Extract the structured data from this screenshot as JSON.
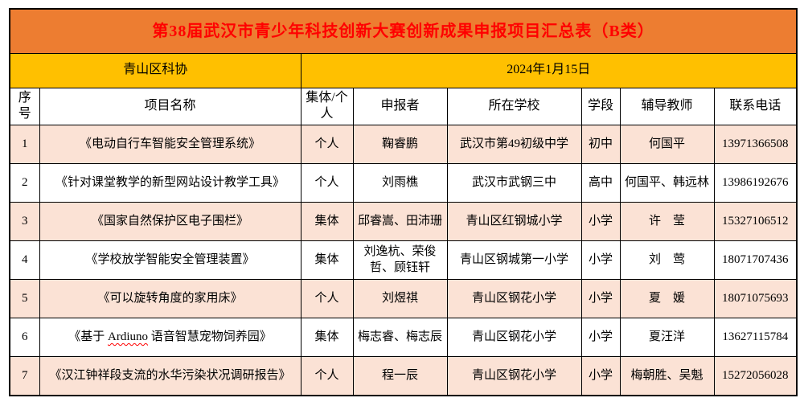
{
  "colors": {
    "banner_bg": "#ED7D31",
    "banner_text": "#FF0000",
    "subheader_bg": "#FFC000",
    "row_pink": "#FBE2D5",
    "row_white": "#FFFFFF",
    "border": "#000000",
    "squiggle": "#FF0000"
  },
  "banner": {
    "title": "第38届武汉市青少年科技创新大赛创新成果申报项目汇总表（B类）"
  },
  "subheader": {
    "organization": "青山区科协",
    "date": "2024年1月15日"
  },
  "table": {
    "headers": [
      "序号",
      "项目名称",
      "集体/个人",
      "申报者",
      "所在学校",
      "学段",
      "辅导教师",
      "联系电话"
    ],
    "rows": [
      {
        "no": "1",
        "project": "《电动自行车智能安全管理系统》",
        "group": "个人",
        "applicants": "鞠睿鹏",
        "school": "武汉市第49初级中学",
        "stage": "初中",
        "teachers": "何国平",
        "phone": "13971366508"
      },
      {
        "no": "2",
        "project": "《针对课堂教学的新型网站设计教学工具》",
        "group": "个人",
        "applicants": "刘雨樵",
        "school": "武汉市武钢三中",
        "stage": "高中",
        "teachers": "何国平、韩远林",
        "phone": "13986192676"
      },
      {
        "no": "3",
        "project": "《国家自然保护区电子围栏》",
        "group": "集体",
        "applicants": "邱睿嵩、田沛珊",
        "school": "青山区红钢城小学",
        "stage": "小学",
        "teachers": "许　莹",
        "phone": "15327106512"
      },
      {
        "no": "4",
        "project": "《学校放学智能安全管理装置》",
        "group": "集体",
        "applicants": "刘逸杭、荣俊哲、顾钰轩",
        "school": "青山区钢城第一小学",
        "stage": "小学",
        "teachers": "刘　莺",
        "phone": "18071707436"
      },
      {
        "no": "5",
        "project": "《可以旋转角度的家用床》",
        "group": "个人",
        "applicants": "刘煜祺",
        "school": "青山区钢花小学",
        "stage": "小学",
        "teachers": "夏　媛",
        "phone": "18071075693"
      },
      {
        "no": "6",
        "project_parts": [
          {
            "text": "《基于 "
          },
          {
            "text": "Ardiuno",
            "misspelled": true
          },
          {
            "text": " 语音智慧宠物饲养园》"
          }
        ],
        "group": "集体",
        "applicants": "梅志睿、梅志辰",
        "school": "青山区钢花小学",
        "stage": "小学",
        "teachers": "夏汪洋",
        "phone": "13627115784"
      },
      {
        "no": "7",
        "project": "《汉江钟祥段支流的水华污染状况调研报告》",
        "group": "个人",
        "applicants": "程一辰",
        "school": "青山区钢花小学",
        "stage": "小学",
        "teachers": "梅朝胜、吴魁",
        "phone": "15272056028"
      }
    ]
  }
}
